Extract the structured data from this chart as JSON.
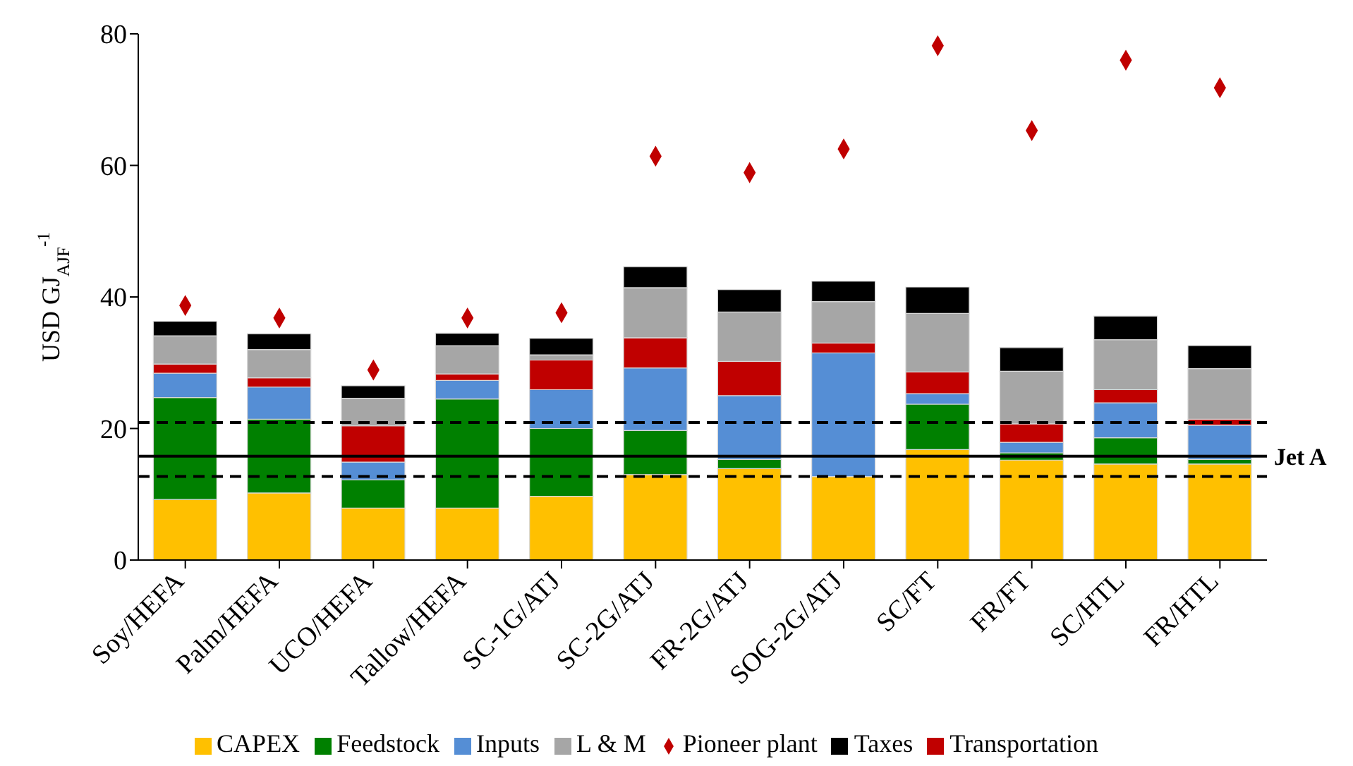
{
  "chart_data": {
    "type": "bar",
    "stacked": true,
    "ylabel": "USD GJ$_{AJF}$$^{-1}$",
    "categories": [
      "Soy/HEFA",
      "Palm/HEFA",
      "UCO/HEFA",
      "Tallow/HEFA",
      "SC-1G/ATJ",
      "SC-2G/ATJ",
      "FR-2G/ATJ",
      "SOG-2G/ATJ",
      "SC/FT",
      "FR/FT",
      "SC/HTL",
      "FR/HTL"
    ],
    "series": [
      {
        "name": "CAPEX",
        "color": "#ffc000",
        "values": [
          9.2,
          10.2,
          7.9,
          7.9,
          9.7,
          13.0,
          13.9,
          12.7,
          16.8,
          15.2,
          14.6,
          14.6
        ]
      },
      {
        "name": "Feedstock",
        "color": "#008000",
        "values": [
          15.5,
          11.2,
          4.3,
          16.6,
          10.3,
          6.7,
          1.4,
          0,
          6.9,
          1.1,
          4.0,
          0.7
        ]
      },
      {
        "name": "Inputs",
        "color": "#558ed5",
        "values": [
          3.7,
          4.9,
          2.7,
          2.8,
          5.9,
          9.5,
          9.7,
          18.8,
          1.6,
          1.6,
          5.3,
          5.2
        ]
      },
      {
        "name": "Transportation",
        "color": "#c00000",
        "values": [
          1.4,
          1.4,
          5.5,
          1.0,
          4.5,
          4.6,
          5.2,
          1.5,
          3.3,
          2.8,
          2.0,
          0.9
        ]
      },
      {
        "name": "L & M",
        "color": "#a6a6a6",
        "values": [
          4.3,
          4.3,
          4.2,
          4.3,
          0.8,
          7.6,
          7.5,
          6.3,
          8.9,
          8.0,
          7.6,
          7.7
        ]
      },
      {
        "name": "Taxes",
        "color": "#000000",
        "values": [
          2.2,
          2.4,
          1.9,
          1.9,
          2.5,
          3.2,
          3.4,
          3.1,
          4.0,
          3.6,
          3.6,
          3.5
        ]
      },
      {
        "name": "Pioneer plant",
        "type": "scatter",
        "marker": "diamond",
        "color": "#c00000",
        "x": [
          "Soy/HEFA",
          "Palm/HEFA",
          "UCO/HEFA",
          "Tallow/HEFA",
          "SC-1G/ATJ",
          "SC-2G/ATJ",
          "FR-2G/ATJ",
          "SOG-2G/ATJ",
          "SC/FT",
          "FR/FT",
          "SC/HTL",
          "FR/HTL"
        ],
        "values": [
          38.7,
          36.8,
          28.9,
          36.8,
          37.6,
          61.4,
          58.9,
          62.5,
          78.2,
          65.3,
          76.0,
          71.8
        ]
      }
    ],
    "ylim": [
      0,
      80
    ],
    "yticks": [
      0,
      20,
      40,
      60,
      80
    ],
    "legend": "bottom",
    "ref_lines": [
      {
        "axis": "y",
        "value": 15.8,
        "label": "Jet A",
        "color": "#000000",
        "line_style": "solid"
      },
      {
        "axis": "y",
        "value": 20.9,
        "label": null,
        "color": "#000000",
        "line_style": "dashed"
      },
      {
        "axis": "y",
        "value": 12.7,
        "label": null,
        "color": "#000000",
        "line_style": "dashed"
      }
    ]
  }
}
